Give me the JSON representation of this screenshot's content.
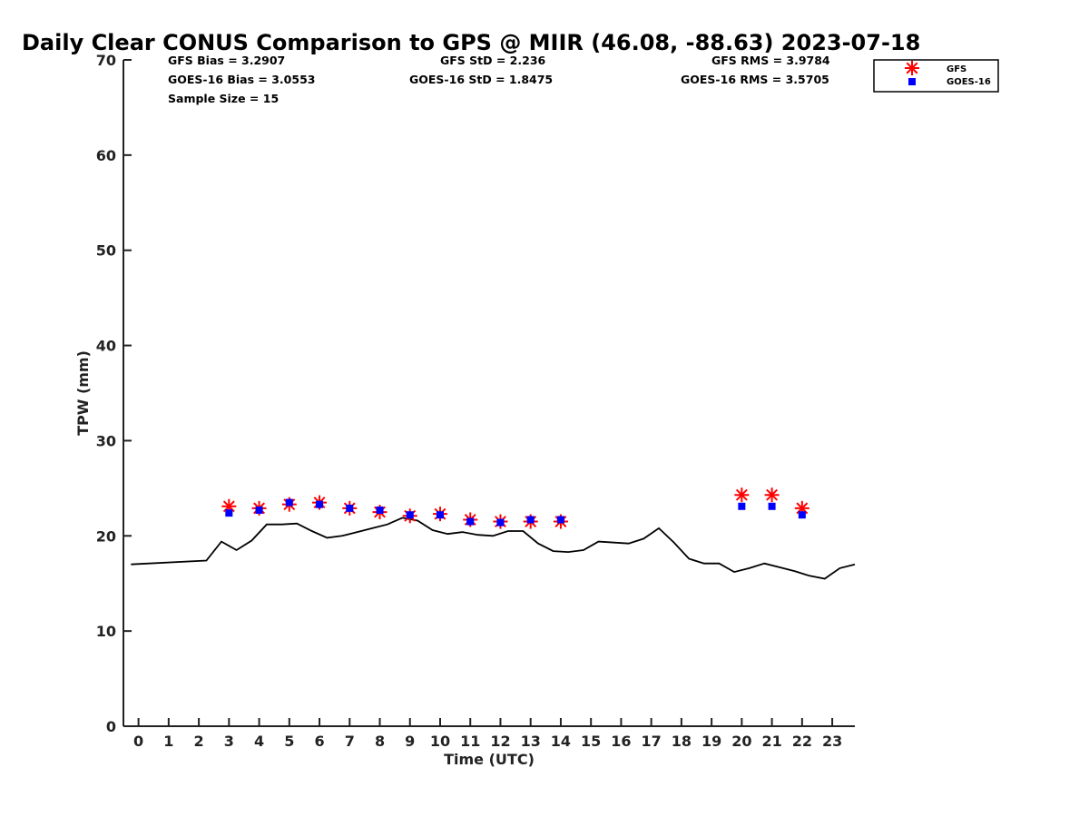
{
  "chart_data": {
    "type": "scatter",
    "title": "Daily Clear CONUS Comparison to GPS @ MIIR (46.08, -88.63) 2023-07-18",
    "xlabel": "Time (UTC)",
    "ylabel": "TPW (mm)",
    "xlim": [
      -0.5,
      23.75
    ],
    "ylim": [
      0,
      70
    ],
    "xticks": [
      0,
      1,
      2,
      3,
      4,
      5,
      6,
      7,
      8,
      9,
      10,
      11,
      12,
      13,
      14,
      15,
      16,
      17,
      18,
      19,
      20,
      21,
      22,
      23
    ],
    "yticks": [
      0,
      10,
      20,
      30,
      40,
      50,
      60,
      70
    ],
    "grid": false,
    "legend_position": "top-right",
    "stats": {
      "gfs_bias": "GFS Bias = 3.2907",
      "goes_bias": "GOES-16 Bias = 3.0553",
      "sample_size": "Sample Size = 15",
      "gfs_std": "GFS StD = 2.236",
      "goes_std": "GOES-16 StD = 1.8475",
      "gfs_rms": "GFS RMS = 3.9784",
      "goes_rms": "GOES-16 RMS = 3.5705"
    },
    "series": [
      {
        "name": "GFS",
        "marker": "asterisk",
        "color": "#ff0000",
        "x": [
          3.0,
          4.0,
          5.0,
          6.0,
          7.0,
          8.0,
          9.0,
          10.0,
          11.0,
          12.0,
          13.0,
          14.0,
          20.0,
          21.0,
          22.0
        ],
        "y": [
          23.1,
          22.9,
          23.3,
          23.5,
          22.9,
          22.5,
          22.1,
          22.3,
          21.7,
          21.5,
          21.5,
          21.5,
          24.3,
          24.3,
          22.9
        ]
      },
      {
        "name": "GOES-16",
        "marker": "square",
        "color": "#0000ff",
        "x": [
          3.0,
          4.0,
          5.0,
          6.0,
          7.0,
          8.0,
          9.0,
          10.0,
          11.0,
          12.0,
          13.0,
          14.0,
          20.0,
          21.0,
          22.0
        ],
        "y": [
          22.4,
          22.7,
          23.5,
          23.3,
          22.9,
          22.7,
          22.2,
          22.2,
          21.5,
          21.4,
          21.7,
          21.7,
          23.1,
          23.1,
          22.2
        ]
      },
      {
        "marker": "line",
        "color": "#000000",
        "x": [
          -0.25,
          2.25,
          2.75,
          3.25,
          3.75,
          4.25,
          4.75,
          5.25,
          5.75,
          6.25,
          6.75,
          7.25,
          7.75,
          8.25,
          8.75,
          9.25,
          9.75,
          10.25,
          10.75,
          11.25,
          11.75,
          12.25,
          12.75,
          13.25,
          13.75,
          14.25,
          14.75,
          15.25,
          16.25,
          16.75,
          17.25,
          17.75,
          18.25,
          18.75,
          19.25,
          19.75,
          20.25,
          20.75,
          21.25,
          21.75,
          22.25,
          22.75,
          23.25,
          23.75
        ],
        "y": [
          17.0,
          17.4,
          19.4,
          18.5,
          19.5,
          21.2,
          21.2,
          21.3,
          20.5,
          19.8,
          20.0,
          20.4,
          20.8,
          21.2,
          21.9,
          21.6,
          20.6,
          20.2,
          20.4,
          20.1,
          20.0,
          20.5,
          20.5,
          19.2,
          18.4,
          18.3,
          18.5,
          19.4,
          19.2,
          19.7,
          20.8,
          19.3,
          17.6,
          17.1,
          17.1,
          16.2,
          16.6,
          17.1,
          16.7,
          16.3,
          15.8,
          15.5,
          16.6,
          17.0
        ]
      }
    ]
  }
}
